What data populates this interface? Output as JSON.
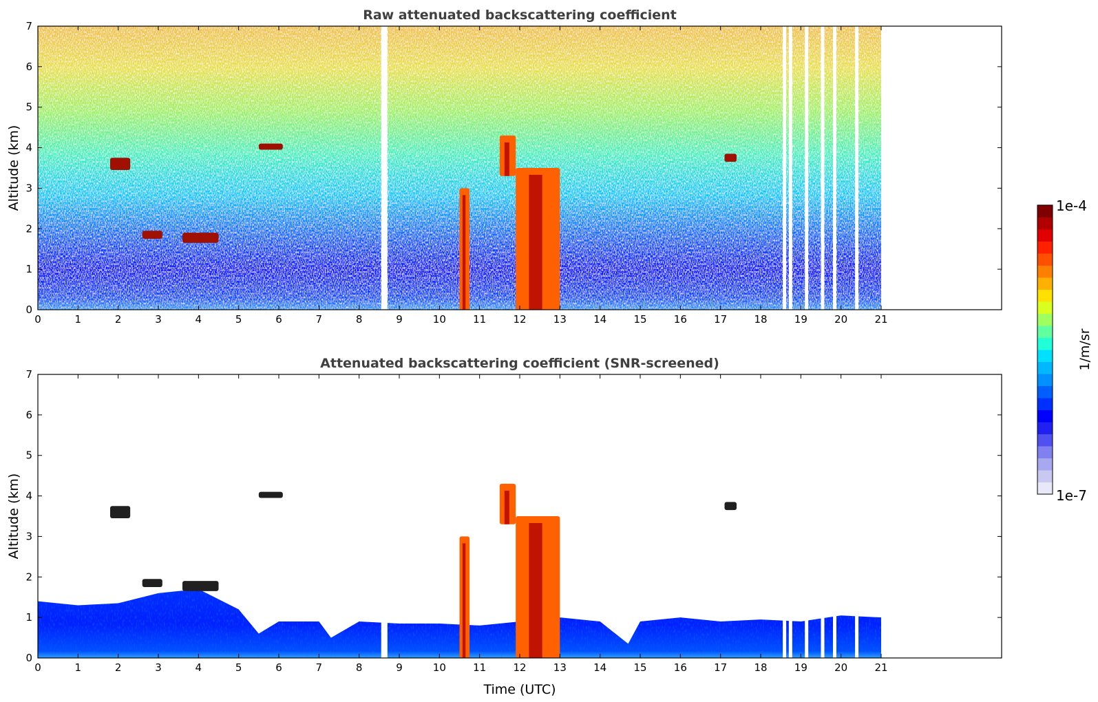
{
  "chart_data": [
    {
      "type": "heatmap",
      "title": "Raw attenuated backscattering coefficient",
      "xlabel": "",
      "ylabel": "Altitude (km)",
      "xlim": [
        0,
        24
      ],
      "ylim": [
        0,
        7
      ],
      "xticks": [
        "0",
        "1",
        "2",
        "3",
        "4",
        "5",
        "6",
        "7",
        "8",
        "9",
        "10",
        "11",
        "12",
        "13",
        "14",
        "15",
        "16",
        "17",
        "18",
        "19",
        "20",
        "21"
      ],
      "yticks": [
        "0",
        "1",
        "2",
        "3",
        "4",
        "5",
        "6",
        "7"
      ],
      "data_extent_hours": [
        0,
        21
      ],
      "background_noise": "noisy field: blue/cyan near surface, green/yellow/red speckle aloft",
      "features": [
        {
          "kind": "aerosol_layer",
          "x": [
            1.8,
            2.3
          ],
          "y": [
            3.45,
            3.75
          ]
        },
        {
          "kind": "aerosol_layer",
          "x": [
            2.6,
            3.1
          ],
          "y": [
            1.75,
            1.95
          ]
        },
        {
          "kind": "aerosol_layer",
          "x": [
            3.6,
            4.5
          ],
          "y": [
            1.65,
            1.9
          ]
        },
        {
          "kind": "aerosol_layer",
          "x": [
            5.5,
            6.1
          ],
          "y": [
            3.95,
            4.1
          ]
        },
        {
          "kind": "aerosol_layer",
          "x": [
            17.1,
            17.4
          ],
          "y": [
            3.65,
            3.85
          ]
        },
        {
          "kind": "cloud",
          "x": [
            10.5,
            10.75
          ],
          "y": [
            0,
            3.0
          ]
        },
        {
          "kind": "cloud",
          "x": [
            11.5,
            11.9
          ],
          "y": [
            3.3,
            4.3
          ]
        },
        {
          "kind": "cloud",
          "x": [
            11.9,
            13.0
          ],
          "y": [
            0,
            3.5
          ]
        }
      ],
      "missing_time_gaps_hours": [
        8.55,
        8.62,
        18.55,
        18.7,
        19.1,
        19.5,
        19.8,
        20.35
      ]
    },
    {
      "type": "heatmap",
      "title": "Attenuated backscattering coefficient (SNR-screened)",
      "xlabel": "Time (UTC)",
      "ylabel": "Altitude (km)",
      "xlim": [
        0,
        24
      ],
      "ylim": [
        0,
        7
      ],
      "xticks": [
        "0",
        "1",
        "2",
        "3",
        "4",
        "5",
        "6",
        "7",
        "8",
        "9",
        "10",
        "11",
        "12",
        "13",
        "14",
        "15",
        "16",
        "17",
        "18",
        "19",
        "20",
        "21"
      ],
      "yticks": [
        "0",
        "1",
        "2",
        "3",
        "4",
        "5",
        "6",
        "7"
      ],
      "boundary_layer_top_km": [
        [
          0,
          1.4
        ],
        [
          1,
          1.3
        ],
        [
          2,
          1.35
        ],
        [
          3,
          1.6
        ],
        [
          4,
          1.7
        ],
        [
          5,
          1.2
        ],
        [
          5.5,
          0.6
        ],
        [
          6,
          0.9
        ],
        [
          7,
          0.9
        ],
        [
          7.3,
          0.5
        ],
        [
          8,
          0.9
        ],
        [
          9,
          0.85
        ],
        [
          10,
          0.85
        ],
        [
          11,
          0.8
        ],
        [
          13,
          1.0
        ],
        [
          14,
          0.9
        ],
        [
          14.7,
          0.35
        ],
        [
          15,
          0.9
        ],
        [
          16,
          1.0
        ],
        [
          17,
          0.9
        ],
        [
          18,
          0.95
        ],
        [
          19,
          0.9
        ],
        [
          20,
          1.05
        ],
        [
          21,
          1.0
        ]
      ]
    }
  ],
  "colorbar": {
    "max_label": "1e-4",
    "min_label": "1e-7",
    "unit_label": "1/m/sr",
    "colors": [
      "#e8e8f8",
      "#c8c8f0",
      "#a8a8f0",
      "#8080f0",
      "#5050f0",
      "#2020f0",
      "#0000ff",
      "#0030ff",
      "#0060ff",
      "#0090ff",
      "#00b8ff",
      "#00e0ff",
      "#20ffd8",
      "#60ffa0",
      "#a0ff60",
      "#d8ff20",
      "#ffe000",
      "#ffb000",
      "#ff8000",
      "#ff5000",
      "#ff2000",
      "#e00000",
      "#b00000",
      "#800000"
    ]
  }
}
